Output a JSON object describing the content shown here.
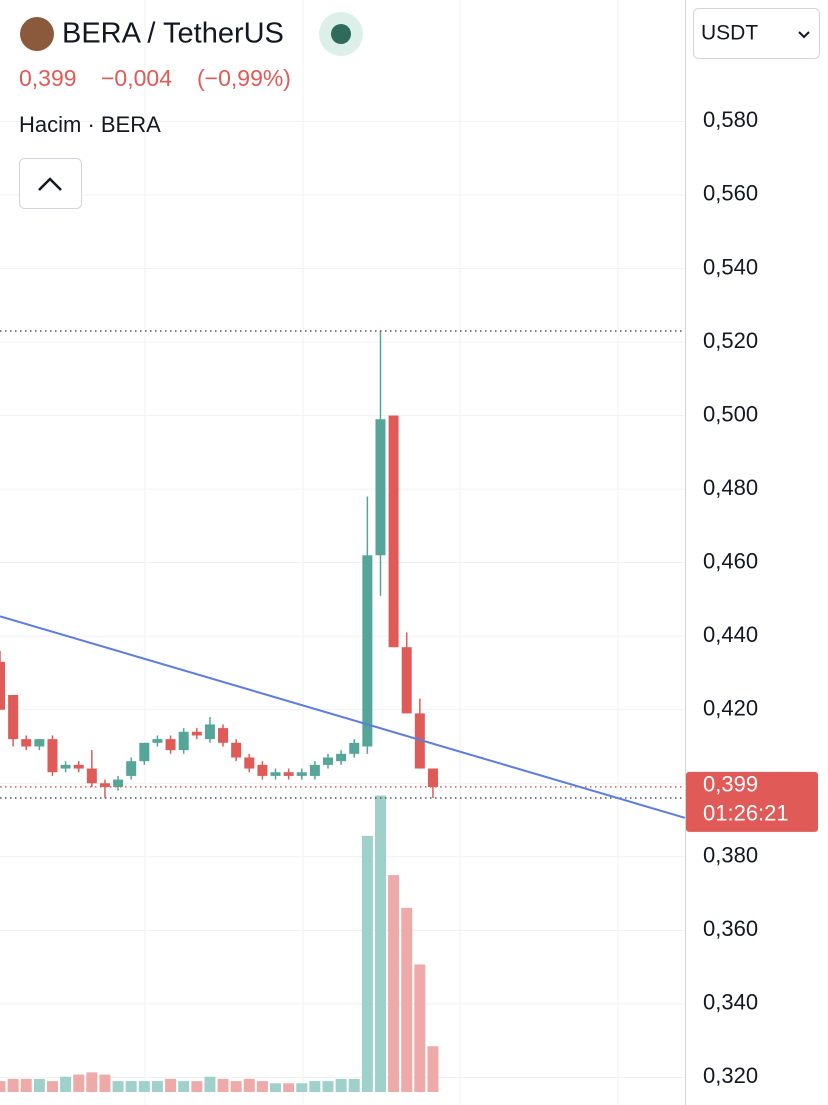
{
  "header": {
    "symbol": "BERA / TetherUS",
    "price": "0,399",
    "change": "−0,004",
    "change_pct": "(−0,99%)",
    "volume_label": "Hacim · BERA",
    "currency": "USDT",
    "countdown": "01:26:21"
  },
  "chart_data": {
    "type": "candlestick",
    "up_color": "#55a598",
    "down_color": "#e05a57",
    "up_volume_color": "#9fd0ca",
    "down_volume_color": "#eeaaa8",
    "trend_color": "#5b7ee0",
    "ylim": [
      0.3125,
      0.6005
    ],
    "yticks": [
      {
        "value": 0.32,
        "label": "0,320"
      },
      {
        "value": 0.34,
        "label": "0,340"
      },
      {
        "value": 0.36,
        "label": "0,360"
      },
      {
        "value": 0.38,
        "label": "0,380"
      },
      {
        "value": 0.4,
        "label": "0,400"
      },
      {
        "value": 0.42,
        "label": "0,420"
      },
      {
        "value": 0.44,
        "label": "0,440"
      },
      {
        "value": 0.46,
        "label": "0,460"
      },
      {
        "value": 0.48,
        "label": "0,480"
      },
      {
        "value": 0.5,
        "label": "0,500"
      },
      {
        "value": 0.52,
        "label": "0,520"
      },
      {
        "value": 0.54,
        "label": "0,540"
      },
      {
        "value": 0.56,
        "label": "0,560"
      },
      {
        "value": 0.58,
        "label": "0,580"
      }
    ],
    "open": [
      0.433,
      0.424,
      0.412,
      0.41,
      0.412,
      0.404,
      0.405,
      0.404,
      0.4,
      0.399,
      0.402,
      0.406,
      0.411,
      0.412,
      0.409,
      0.414,
      0.412,
      0.415,
      0.411,
      0.407,
      0.405,
      0.402,
      0.403,
      0.402,
      0.402,
      0.405,
      0.406,
      0.408,
      0.41,
      0.462,
      0.5,
      0.437,
      0.419,
      0.404
    ],
    "high": [
      0.436,
      0.424,
      0.413,
      0.412,
      0.413,
      0.406,
      0.406,
      0.409,
      0.401,
      0.402,
      0.407,
      0.411,
      0.413,
      0.413,
      0.415,
      0.415,
      0.418,
      0.416,
      0.412,
      0.408,
      0.406,
      0.404,
      0.404,
      0.404,
      0.406,
      0.408,
      0.409,
      0.412,
      0.478,
      0.523,
      0.5,
      0.441,
      0.423,
      0.404
    ],
    "low": [
      0.42,
      0.41,
      0.409,
      0.409,
      0.402,
      0.403,
      0.403,
      0.399,
      0.396,
      0.398,
      0.401,
      0.405,
      0.41,
      0.408,
      0.408,
      0.412,
      0.411,
      0.41,
      0.406,
      0.403,
      0.401,
      0.401,
      0.401,
      0.401,
      0.401,
      0.404,
      0.405,
      0.407,
      0.408,
      0.451,
      0.437,
      0.419,
      0.404,
      0.396
    ],
    "close": [
      0.42,
      0.412,
      0.41,
      0.412,
      0.403,
      0.405,
      0.404,
      0.4,
      0.399,
      0.401,
      0.406,
      0.411,
      0.412,
      0.409,
      0.414,
      0.413,
      0.416,
      0.411,
      0.407,
      0.404,
      0.402,
      0.403,
      0.402,
      0.403,
      0.405,
      0.407,
      0.408,
      0.411,
      0.462,
      0.499,
      0.437,
      0.419,
      0.404,
      0.399
    ],
    "volume": [
      10,
      12,
      12,
      12,
      10,
      14,
      16,
      18,
      16,
      10,
      10,
      10,
      10,
      12,
      10,
      10,
      14,
      12,
      10,
      12,
      10,
      8,
      8,
      8,
      10,
      10,
      12,
      12,
      235,
      272,
      199,
      169,
      117,
      42
    ],
    "volume_lim": [
      0,
      300
    ],
    "trendline": [
      [
        0,
        0.4454
      ],
      [
        52.2,
        0.3906
      ]
    ]
  }
}
